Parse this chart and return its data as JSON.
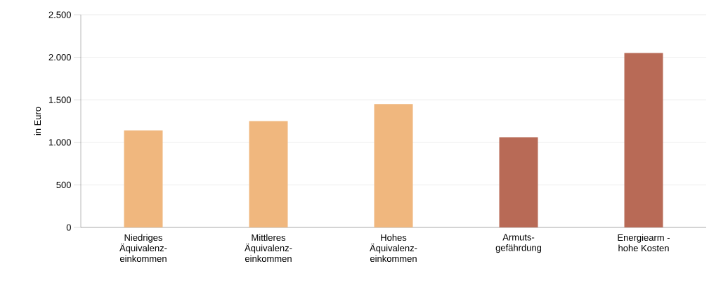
{
  "chart_data": {
    "type": "bar",
    "ylabel": "in Euro",
    "categories": [
      "Niedriges Äquivalenz-einkommen",
      "Mittleres Äquivalenz-einkommen",
      "Hohes Äquivalenz-einkommen",
      "Armuts-gefährdung",
      "Energiearm - hohe Kosten"
    ],
    "values": [
      1140,
      1250,
      1450,
      1060,
      2050
    ],
    "colors": [
      "#f0b77e",
      "#f0b77e",
      "#f0b77e",
      "#b86a56",
      "#b86a56"
    ],
    "ylim": [
      0,
      2500
    ],
    "yticks": [
      0,
      {
        "value": 500,
        "label": "500"
      },
      {
        "value": 1000,
        "label": "1.000"
      },
      {
        "value": 1500,
        "label": "1.500"
      },
      {
        "value": 2000,
        "label": "2.000"
      },
      {
        "value": 2500,
        "label": "2.500"
      }
    ],
    "grid": "y"
  }
}
